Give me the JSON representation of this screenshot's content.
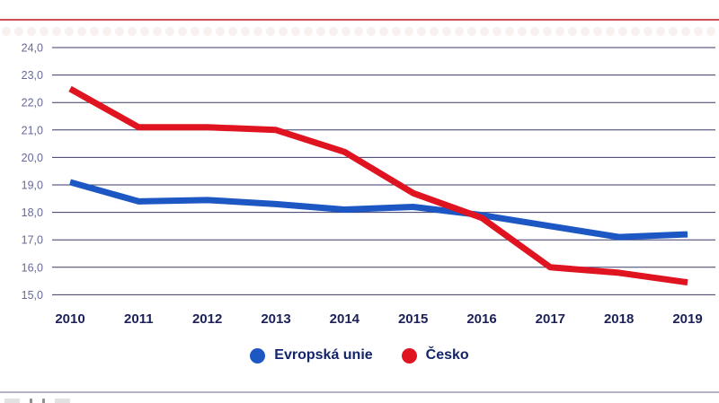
{
  "chart_data": {
    "type": "line",
    "title": "",
    "xlabel": "",
    "ylabel": "",
    "x": [
      "2010",
      "2011",
      "2012",
      "2013",
      "2014",
      "2015",
      "2016",
      "2017",
      "2018",
      "2019"
    ],
    "series": [
      {
        "name": "Evropská unie",
        "color": "#1d57c4",
        "values": [
          19.1,
          18.4,
          18.45,
          18.3,
          18.1,
          18.2,
          17.9,
          17.5,
          17.1,
          17.2
        ]
      },
      {
        "name": "Česko",
        "color": "#e01320",
        "values": [
          22.5,
          21.1,
          21.1,
          21.0,
          20.2,
          18.7,
          17.8,
          16.0,
          15.8,
          15.45
        ]
      }
    ],
    "ylim": [
      15,
      24
    ],
    "ytick_values": [
      24,
      23,
      22,
      21,
      20,
      19,
      18,
      17,
      16,
      15
    ],
    "ytick_labels": [
      "24,0",
      "23,0",
      "22,0",
      "21,0",
      "20,0",
      "19,0",
      "18,0",
      "17,0",
      "16,0",
      "15,0"
    ],
    "decimal_separator": ",",
    "grid": true,
    "legend_position": "bottom",
    "colors": {
      "grid_line": "#3a3a68",
      "y_tick_label": "#67699a",
      "x_tick_label": "#1c2158",
      "legend_text": "#13246b",
      "top_rule": "#cf4e55",
      "footer_divider": "#b3b3c6"
    }
  }
}
